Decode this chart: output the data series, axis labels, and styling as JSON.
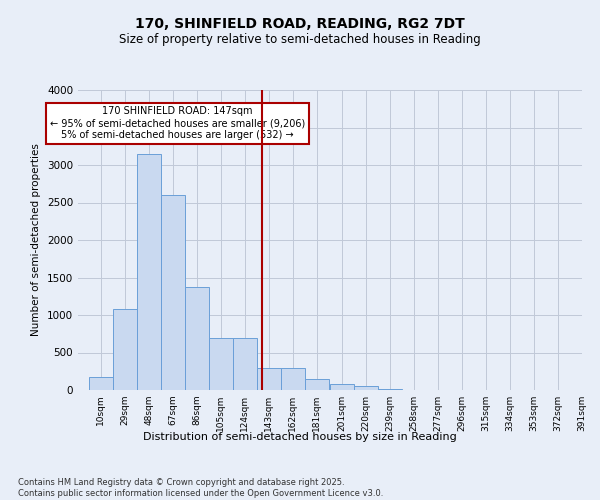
{
  "title1": "170, SHINFIELD ROAD, READING, RG2 7DT",
  "title2": "Size of property relative to semi-detached houses in Reading",
  "xlabel": "Distribution of semi-detached houses by size in Reading",
  "ylabel": "Number of semi-detached properties",
  "footnote1": "Contains HM Land Registry data © Crown copyright and database right 2025.",
  "footnote2": "Contains public sector information licensed under the Open Government Licence v3.0.",
  "property_size": 147,
  "annotation_line1": "170 SHINFIELD ROAD: 147sqm",
  "annotation_line2": "← 95% of semi-detached houses are smaller (9,206)",
  "annotation_line3": "5% of semi-detached houses are larger (532) →",
  "bin_edges": [
    10,
    29,
    48,
    67,
    86,
    105,
    124,
    143,
    162,
    181,
    201,
    220,
    239,
    258,
    277,
    296,
    315,
    334,
    353,
    372,
    391
  ],
  "bin_counts": [
    175,
    1075,
    3150,
    2600,
    1375,
    700,
    700,
    290,
    295,
    150,
    85,
    55,
    10,
    5,
    0,
    0,
    0,
    0,
    0,
    0
  ],
  "bar_color": "#c9d9f0",
  "bar_edge_color": "#6a9fd8",
  "vline_color": "#aa0000",
  "vline_x": 147,
  "annotation_box_color": "#aa0000",
  "grid_color": "#c0c8d8",
  "background_color": "#e8eef8",
  "ylim": [
    0,
    4000
  ],
  "yticks": [
    0,
    500,
    1000,
    1500,
    2000,
    2500,
    3000,
    3500,
    4000
  ]
}
